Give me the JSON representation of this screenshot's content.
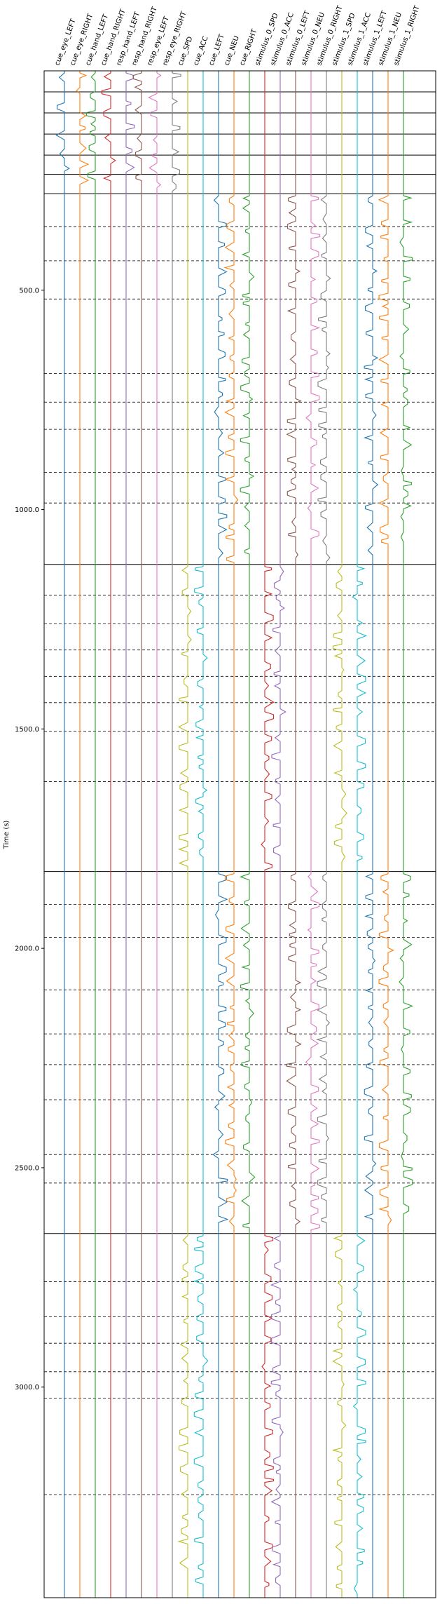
{
  "chart_data": {
    "type": "line",
    "orientation": "vertical-traces",
    "ylabel": "Time (s)",
    "ylim": [
      3480,
      0
    ],
    "yticks": [
      500.0,
      1000.0,
      1500.0,
      2000.0,
      2500.0,
      3000.0
    ],
    "ytick_labels": [
      "500.0",
      "1000.0",
      "1500.0",
      "2000.0",
      "2500.0",
      "3000.0"
    ],
    "legend": "none",
    "grid": false,
    "series": [
      {
        "name": "cue_eye_LEFT",
        "color": "#1f77b4",
        "active": [
          [
            0,
            280
          ]
        ]
      },
      {
        "name": "cue_eye_RIGHT",
        "color": "#ff7f0e",
        "active": [
          [
            0,
            280
          ]
        ]
      },
      {
        "name": "cue_hand_LEFT",
        "color": "#2ca02c",
        "active": [
          [
            0,
            280
          ]
        ]
      },
      {
        "name": "cue_hand_RIGHT",
        "color": "#d62728",
        "active": [
          [
            0,
            280
          ]
        ]
      },
      {
        "name": "resp_hand_LEFT",
        "color": "#9467bd",
        "active": [
          [
            0,
            280
          ]
        ]
      },
      {
        "name": "resp_hand_RIGHT",
        "color": "#8c564b",
        "active": [
          [
            0,
            280
          ]
        ]
      },
      {
        "name": "resp_eye_LEFT",
        "color": "#e377c2",
        "active": [
          [
            0,
            280
          ]
        ]
      },
      {
        "name": "resp_eye_RIGHT",
        "color": "#7f7f7f",
        "active": [
          [
            0,
            280
          ]
        ]
      },
      {
        "name": "cue_SPD",
        "color": "#bcbd22",
        "active": [
          [
            1125,
            1825
          ],
          [
            2650,
            3480
          ]
        ]
      },
      {
        "name": "cue_ACC",
        "color": "#17becf",
        "active": [
          [
            1125,
            1825
          ],
          [
            2650,
            3480
          ]
        ]
      },
      {
        "name": "cue_LEFT",
        "color": "#1f77b4",
        "active": [
          [
            280,
            1125
          ],
          [
            1825,
            2650
          ]
        ]
      },
      {
        "name": "cue_NEU",
        "color": "#ff7f0e",
        "active": [
          [
            280,
            1125
          ],
          [
            1825,
            2650
          ]
        ]
      },
      {
        "name": "cue_RIGHT",
        "color": "#2ca02c",
        "active": [
          [
            280,
            1125
          ],
          [
            1825,
            2650
          ]
        ]
      },
      {
        "name": "stimulus_0_SPD",
        "color": "#d62728",
        "active": [
          [
            1125,
            1825
          ],
          [
            2650,
            3480
          ]
        ]
      },
      {
        "name": "stimulus_0_ACC",
        "color": "#9467bd",
        "active": [
          [
            1125,
            1825
          ],
          [
            2650,
            3480
          ]
        ]
      },
      {
        "name": "stimulus_0_LEFT",
        "color": "#8c564b",
        "active": [
          [
            280,
            1125
          ],
          [
            1825,
            2650
          ]
        ]
      },
      {
        "name": "stimulus_0_NEU",
        "color": "#e377c2",
        "active": [
          [
            280,
            1125
          ],
          [
            1825,
            2650
          ]
        ]
      },
      {
        "name": "stimulus_0_RIGHT",
        "color": "#7f7f7f",
        "active": [
          [
            280,
            1125
          ],
          [
            1825,
            2650
          ]
        ]
      },
      {
        "name": "stimulus_1_SPD",
        "color": "#bcbd22",
        "active": [
          [
            1125,
            1825
          ],
          [
            2650,
            3480
          ]
        ]
      },
      {
        "name": "stimulus_1_ACC",
        "color": "#17becf",
        "active": [
          [
            1125,
            1825
          ],
          [
            2650,
            3480
          ]
        ]
      },
      {
        "name": "stimulus_1_LEFT",
        "color": "#1f77b4",
        "active": [
          [
            280,
            1125
          ],
          [
            1825,
            2650
          ]
        ]
      },
      {
        "name": "stimulus_1_NEU",
        "color": "#ff7f0e",
        "active": [
          [
            280,
            1125
          ],
          [
            1825,
            2650
          ]
        ]
      },
      {
        "name": "stimulus_1_RIGHT",
        "color": "#2ca02c",
        "active": [
          [
            280,
            1125
          ],
          [
            1825,
            2650
          ]
        ]
      }
    ],
    "solid_hlines": [
      48,
      96,
      144,
      192,
      236,
      280,
      1125,
      1825,
      2650
    ],
    "dashed_hlines": [
      355,
      433,
      520,
      690,
      755,
      817,
      915,
      985,
      1195,
      1260,
      1320,
      1380,
      1440,
      1505,
      1620,
      1900,
      1975,
      2095,
      2195,
      2265,
      2345,
      2470,
      2535,
      2760,
      2840,
      2900,
      2965,
      3025,
      3245
    ]
  }
}
